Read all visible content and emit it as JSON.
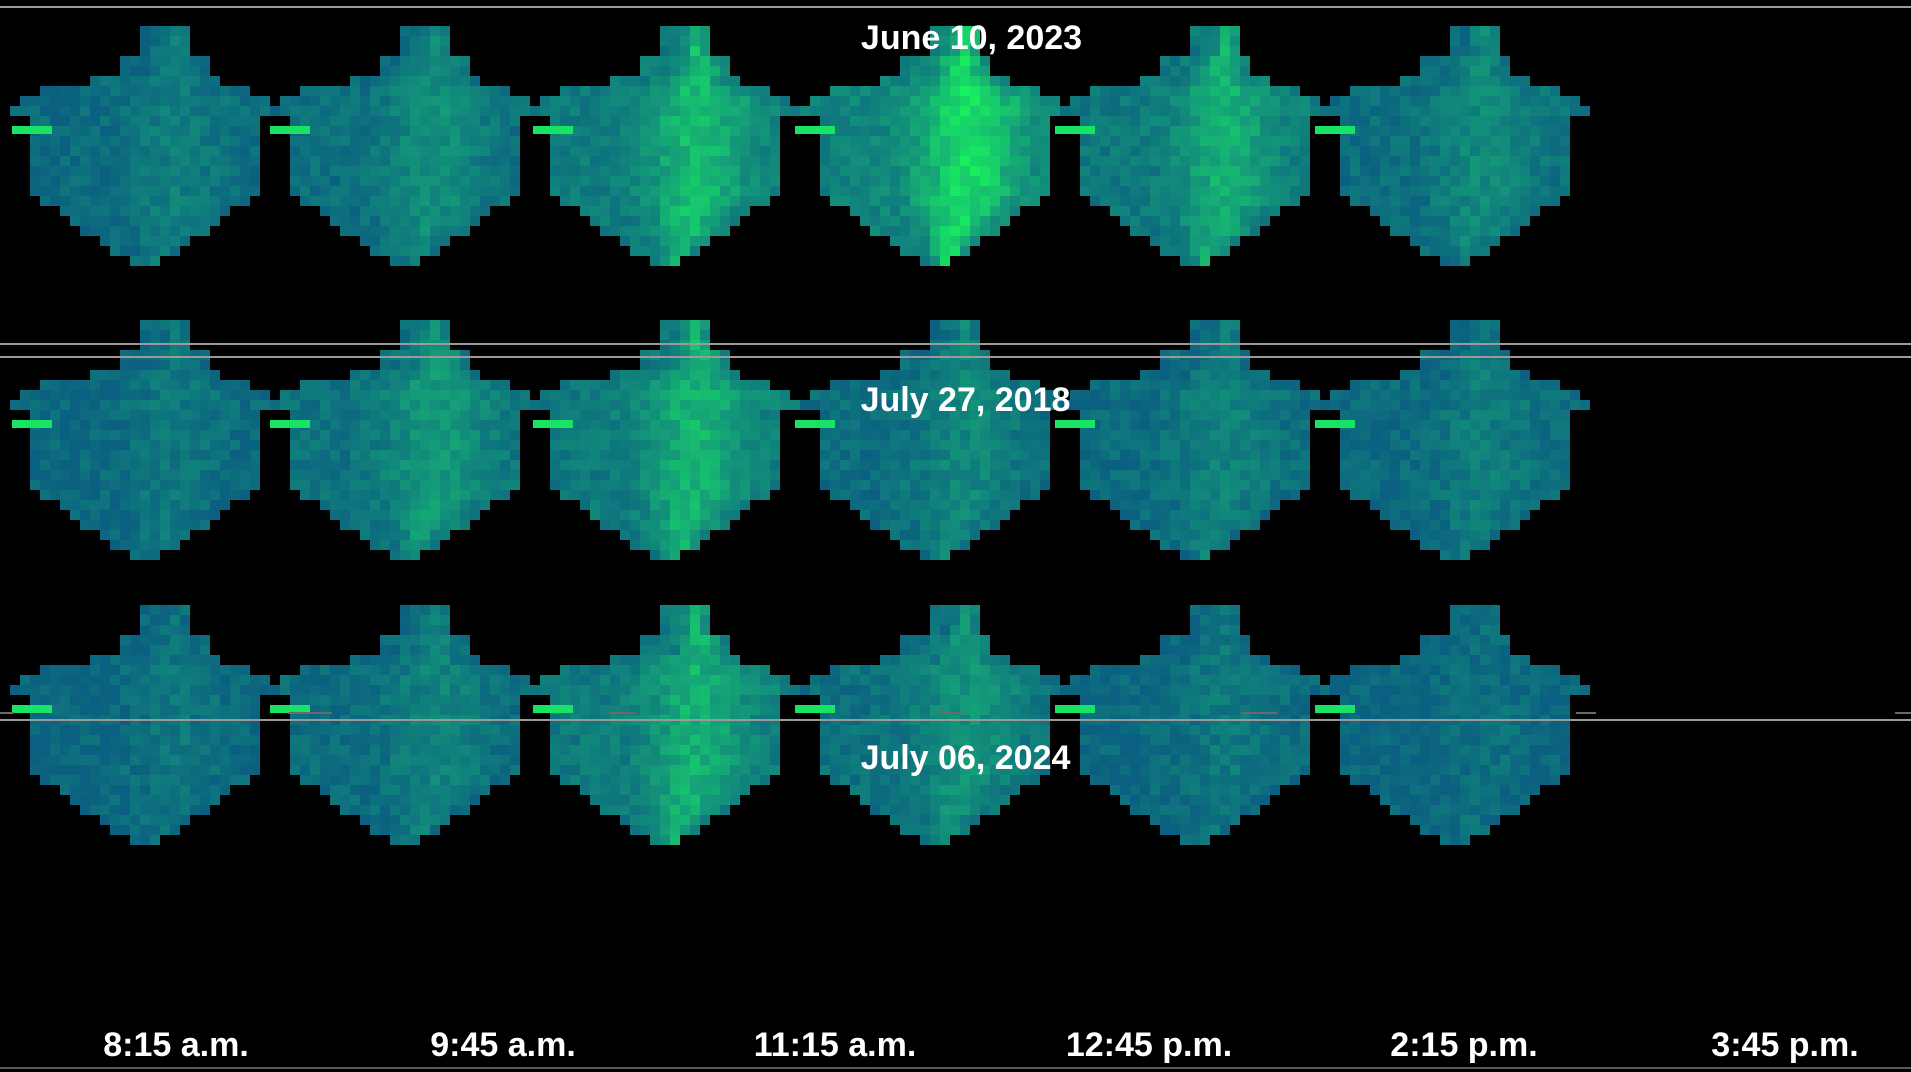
{
  "colors": {
    "background": "#000000",
    "low": "#0b5f80",
    "mid": "#15a078",
    "high": "#19ff5a",
    "separator": "#9a9a9a",
    "text": "#ffffff"
  },
  "rows": [
    {
      "title": "June 10, 2023",
      "levels": [
        0.22,
        0.34,
        0.62,
        0.78,
        0.55,
        0.32
      ]
    },
    {
      "title": "July 27, 2018",
      "levels": [
        0.18,
        0.42,
        0.58,
        0.3,
        0.26,
        0.22
      ]
    },
    {
      "title": "July 06, 2024",
      "levels": [
        0.16,
        0.26,
        0.56,
        0.38,
        0.18,
        0.12
      ]
    }
  ],
  "times": [
    "8:15 a.m.",
    "9:45 a.m.",
    "11:15 a.m.",
    "12:45 p.m.",
    "2:15 p.m.",
    "3:45 p.m."
  ]
}
